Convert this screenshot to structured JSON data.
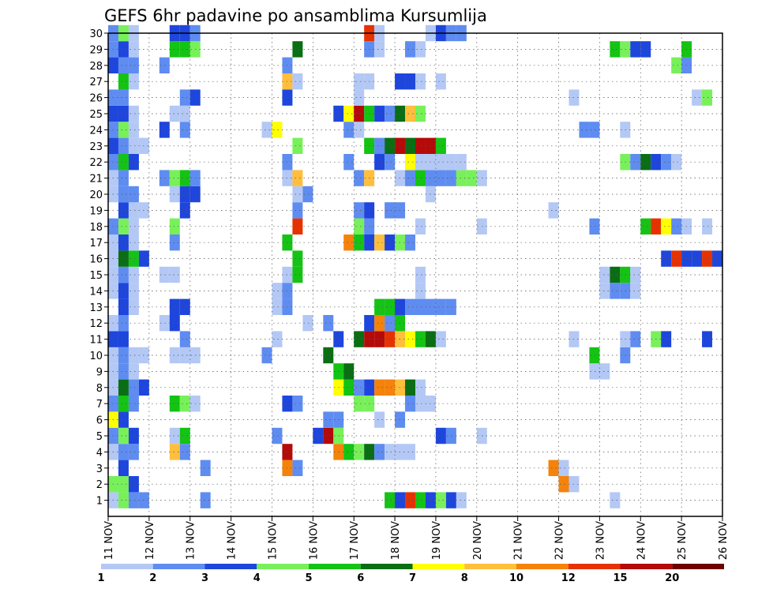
{
  "chart_data": {
    "type": "heatmap",
    "title": "GEFS 6hr padavine po ansamblima Kursumlija",
    "xlabel": "",
    "ylabel": "",
    "x_ticks": [
      "11 NOV",
      "12 NOV",
      "13 NOV",
      "14 NOV",
      "15 NOV",
      "16 NOV",
      "17 NOV",
      "18 NOV",
      "19 NOV",
      "20 NOV",
      "21 NOV",
      "22 NOV",
      "23 NOV",
      "24 NOV",
      "25 NOV",
      "26 NOV"
    ],
    "y_ticks": [
      "1",
      "2",
      "3",
      "4",
      "5",
      "6",
      "7",
      "8",
      "9",
      "10",
      "11",
      "12",
      "13",
      "14",
      "15",
      "16",
      "17",
      "18",
      "19",
      "20",
      "21",
      "22",
      "23",
      "24",
      "25",
      "26",
      "27",
      "28",
      "29",
      "30"
    ],
    "xlim": [
      "11 NOV",
      "26 NOV"
    ],
    "ylim": [
      0,
      30
    ],
    "x_step_hours": 6,
    "grid": true,
    "colorbar": {
      "labels": [
        "1",
        "2",
        "3",
        "4",
        "5",
        "6",
        "7",
        "8",
        "10",
        "12",
        "15",
        "20"
      ],
      "colors": [
        "#b4c8f5",
        "#5f8cf0",
        "#1e46dc",
        "#78f05a",
        "#14c314",
        "#0a6e14",
        "#ffff00",
        "#ffbe3c",
        "#f5820a",
        "#e63200",
        "#b40a0a",
        "#6e0000"
      ]
    },
    "legend_values": [
      1,
      2,
      3,
      4,
      5,
      6,
      7,
      8,
      10,
      12,
      15,
      20
    ],
    "value_colors": {
      "1": "#b4c8f5",
      "2": "#5f8cf0",
      "3": "#1e46dc",
      "4": "#78f05a",
      "5": "#14c314",
      "6": "#0a6e14",
      "7": "#ffff00",
      "8": "#ffbe3c",
      "10": "#f5820a",
      "12": "#e63200",
      "15": "#b40a0a",
      "20": "#6e0000"
    },
    "cells_by_member": {
      "1": [
        [
          0,
          1
        ],
        [
          1,
          4
        ],
        [
          2,
          2
        ],
        [
          3,
          2
        ],
        [
          9,
          2
        ],
        [
          27,
          5
        ],
        [
          28,
          3
        ],
        [
          29,
          12
        ],
        [
          30,
          5
        ],
        [
          31,
          3
        ],
        [
          32,
          4
        ],
        [
          33,
          3
        ],
        [
          34,
          1
        ],
        [
          49,
          1
        ]
      ],
      "2": [
        [
          0,
          4
        ],
        [
          1,
          4
        ],
        [
          2,
          3
        ],
        [
          44,
          10
        ],
        [
          45,
          1
        ]
      ],
      "3": [
        [
          1,
          3
        ],
        [
          9,
          2
        ],
        [
          17,
          10
        ],
        [
          18,
          2
        ],
        [
          43,
          10
        ],
        [
          44,
          1
        ]
      ],
      "4": [
        [
          0,
          1
        ],
        [
          1,
          2
        ],
        [
          2,
          2
        ],
        [
          6,
          8
        ],
        [
          7,
          2
        ],
        [
          17,
          15
        ],
        [
          22,
          10
        ],
        [
          23,
          5
        ],
        [
          24,
          4
        ],
        [
          25,
          6
        ],
        [
          26,
          2
        ],
        [
          27,
          1
        ],
        [
          28,
          1
        ],
        [
          29,
          1
        ]
      ],
      "5": [
        [
          0,
          2
        ],
        [
          1,
          4
        ],
        [
          2,
          3
        ],
        [
          6,
          1
        ],
        [
          7,
          5
        ],
        [
          16,
          2
        ],
        [
          20,
          3
        ],
        [
          21,
          15
        ],
        [
          22,
          4
        ],
        [
          32,
          3
        ],
        [
          33,
          2
        ],
        [
          36,
          1
        ]
      ],
      "6": [
        [
          0,
          7
        ],
        [
          1,
          3
        ],
        [
          21,
          2
        ],
        [
          22,
          2
        ],
        [
          26,
          1
        ],
        [
          28,
          2
        ]
      ],
      "7": [
        [
          0,
          2
        ],
        [
          1,
          5
        ],
        [
          2,
          2
        ],
        [
          6,
          5
        ],
        [
          7,
          4
        ],
        [
          8,
          1
        ],
        [
          17,
          3
        ],
        [
          18,
          2
        ],
        [
          24,
          4
        ],
        [
          25,
          4
        ],
        [
          29,
          2
        ],
        [
          30,
          1
        ],
        [
          31,
          1
        ]
      ],
      "8": [
        [
          0,
          1
        ],
        [
          1,
          6
        ],
        [
          2,
          2
        ],
        [
          3,
          3
        ],
        [
          22,
          7
        ],
        [
          23,
          5
        ],
        [
          24,
          2
        ],
        [
          25,
          3
        ],
        [
          26,
          10
        ],
        [
          27,
          10
        ],
        [
          28,
          8
        ],
        [
          29,
          6
        ],
        [
          30,
          1
        ]
      ],
      "9": [
        [
          0,
          1
        ],
        [
          1,
          2
        ],
        [
          2,
          1
        ],
        [
          22,
          5
        ],
        [
          23,
          6
        ],
        [
          47,
          1
        ],
        [
          48,
          1
        ]
      ],
      "10": [
        [
          0,
          1
        ],
        [
          1,
          2
        ],
        [
          2,
          1
        ],
        [
          3,
          1
        ],
        [
          6,
          1
        ],
        [
          7,
          1
        ],
        [
          8,
          1
        ],
        [
          15,
          2
        ],
        [
          21,
          6
        ],
        [
          47,
          5
        ],
        [
          50,
          2
        ]
      ],
      "11": [
        [
          0,
          3
        ],
        [
          1,
          3
        ],
        [
          7,
          2
        ],
        [
          16,
          1
        ],
        [
          22,
          3
        ],
        [
          24,
          6
        ],
        [
          25,
          15
        ],
        [
          26,
          15
        ],
        [
          27,
          12
        ],
        [
          28,
          8
        ],
        [
          29,
          7
        ],
        [
          30,
          5
        ],
        [
          31,
          6
        ],
        [
          32,
          1
        ],
        [
          45,
          1
        ],
        [
          50,
          1
        ],
        [
          51,
          2
        ],
        [
          53,
          4
        ],
        [
          54,
          3
        ],
        [
          58,
          3
        ]
      ],
      "12": [
        [
          0,
          1
        ],
        [
          1,
          2
        ],
        [
          5,
          1
        ],
        [
          6,
          3
        ],
        [
          19,
          1
        ],
        [
          21,
          2
        ],
        [
          25,
          3
        ],
        [
          26,
          10
        ],
        [
          27,
          2
        ],
        [
          28,
          5
        ]
      ],
      "13": [
        [
          1,
          3
        ],
        [
          2,
          1
        ],
        [
          6,
          3
        ],
        [
          7,
          3
        ],
        [
          16,
          1
        ],
        [
          17,
          2
        ],
        [
          26,
          5
        ],
        [
          27,
          5
        ],
        [
          28,
          3
        ],
        [
          29,
          2
        ],
        [
          30,
          2
        ],
        [
          31,
          2
        ],
        [
          32,
          2
        ],
        [
          33,
          2
        ]
      ],
      "14": [
        [
          0,
          1
        ],
        [
          1,
          3
        ],
        [
          2,
          1
        ],
        [
          16,
          1
        ],
        [
          17,
          2
        ],
        [
          30,
          1
        ],
        [
          48,
          1
        ],
        [
          49,
          2
        ],
        [
          50,
          2
        ],
        [
          51,
          1
        ]
      ],
      "15": [
        [
          0,
          1
        ],
        [
          1,
          2
        ],
        [
          2,
          1
        ],
        [
          5,
          1
        ],
        [
          6,
          1
        ],
        [
          17,
          1
        ],
        [
          18,
          5
        ],
        [
          30,
          1
        ],
        [
          48,
          1
        ],
        [
          49,
          6
        ],
        [
          50,
          5
        ],
        [
          51,
          1
        ]
      ],
      "16": [
        [
          0,
          1
        ],
        [
          1,
          6
        ],
        [
          2,
          5
        ],
        [
          3,
          3
        ],
        [
          18,
          5
        ],
        [
          54,
          3
        ],
        [
          55,
          12
        ],
        [
          56,
          3
        ],
        [
          57,
          3
        ],
        [
          58,
          12
        ],
        [
          59,
          3
        ]
      ],
      "17": [
        [
          0,
          1
        ],
        [
          1,
          3
        ],
        [
          2,
          1
        ],
        [
          6,
          2
        ],
        [
          17,
          5
        ],
        [
          23,
          10
        ],
        [
          24,
          5
        ],
        [
          25,
          3
        ],
        [
          26,
          8
        ],
        [
          27,
          3
        ],
        [
          28,
          4
        ],
        [
          29,
          2
        ]
      ],
      "18": [
        [
          0,
          2
        ],
        [
          1,
          4
        ],
        [
          2,
          1
        ],
        [
          6,
          4
        ],
        [
          18,
          12
        ],
        [
          24,
          4
        ],
        [
          25,
          2
        ],
        [
          30,
          1
        ],
        [
          36,
          1
        ],
        [
          47,
          2
        ],
        [
          52,
          5
        ],
        [
          53,
          12
        ],
        [
          54,
          7
        ],
        [
          55,
          2
        ],
        [
          56,
          1
        ],
        [
          58,
          1
        ]
      ],
      "19": [
        [
          1,
          3
        ],
        [
          2,
          1
        ],
        [
          3,
          1
        ],
        [
          7,
          3
        ],
        [
          18,
          2
        ],
        [
          24,
          2
        ],
        [
          25,
          3
        ],
        [
          27,
          2
        ],
        [
          28,
          2
        ],
        [
          43,
          1
        ]
      ],
      "20": [
        [
          0,
          1
        ],
        [
          1,
          2
        ],
        [
          2,
          2
        ],
        [
          6,
          1
        ],
        [
          7,
          3
        ],
        [
          8,
          3
        ],
        [
          18,
          1
        ],
        [
          19,
          2
        ],
        [
          31,
          1
        ]
      ],
      "21": [
        [
          0,
          1
        ],
        [
          1,
          2
        ],
        [
          5,
          2
        ],
        [
          6,
          4
        ],
        [
          7,
          5
        ],
        [
          8,
          2
        ],
        [
          17,
          1
        ],
        [
          18,
          8
        ],
        [
          24,
          2
        ],
        [
          25,
          8
        ],
        [
          28,
          1
        ],
        [
          29,
          2
        ],
        [
          30,
          5
        ],
        [
          31,
          2
        ],
        [
          32,
          2
        ],
        [
          33,
          2
        ],
        [
          34,
          4
        ],
        [
          35,
          4
        ],
        [
          36,
          1
        ]
      ],
      "22": [
        [
          0,
          2
        ],
        [
          1,
          5
        ],
        [
          2,
          3
        ],
        [
          17,
          2
        ],
        [
          23,
          2
        ],
        [
          26,
          3
        ],
        [
          27,
          2
        ],
        [
          29,
          7
        ],
        [
          30,
          1
        ],
        [
          31,
          1
        ],
        [
          32,
          1
        ],
        [
          33,
          1
        ],
        [
          34,
          1
        ],
        [
          50,
          4
        ],
        [
          51,
          2
        ],
        [
          52,
          6
        ],
        [
          53,
          3
        ],
        [
          54,
          2
        ],
        [
          55,
          1
        ]
      ],
      "23": [
        [
          0,
          3
        ],
        [
          1,
          2
        ],
        [
          2,
          1
        ],
        [
          3,
          1
        ],
        [
          18,
          4
        ],
        [
          25,
          5
        ],
        [
          26,
          2
        ],
        [
          27,
          6
        ],
        [
          28,
          15
        ],
        [
          29,
          6
        ],
        [
          30,
          15
        ],
        [
          31,
          15
        ],
        [
          32,
          5
        ]
      ],
      "24": [
        [
          0,
          2
        ],
        [
          1,
          4
        ],
        [
          2,
          1
        ],
        [
          5,
          3
        ],
        [
          7,
          2
        ],
        [
          15,
          1
        ],
        [
          16,
          7
        ],
        [
          23,
          2
        ],
        [
          24,
          1
        ],
        [
          46,
          2
        ],
        [
          47,
          2
        ],
        [
          50,
          1
        ]
      ],
      "25": [
        [
          0,
          3
        ],
        [
          1,
          3
        ],
        [
          2,
          1
        ],
        [
          6,
          1
        ],
        [
          7,
          1
        ],
        [
          22,
          3
        ],
        [
          23,
          7
        ],
        [
          24,
          15
        ],
        [
          25,
          5
        ],
        [
          26,
          3
        ],
        [
          27,
          2
        ],
        [
          28,
          6
        ],
        [
          29,
          8
        ],
        [
          30,
          4
        ]
      ],
      "26": [
        [
          0,
          2
        ],
        [
          1,
          2
        ],
        [
          7,
          2
        ],
        [
          8,
          3
        ],
        [
          17,
          3
        ],
        [
          24,
          1
        ],
        [
          45,
          1
        ],
        [
          57,
          1
        ],
        [
          58,
          4
        ]
      ],
      "27": [
        [
          1,
          5
        ],
        [
          2,
          1
        ],
        [
          17,
          8
        ],
        [
          18,
          1
        ],
        [
          24,
          1
        ],
        [
          25,
          1
        ],
        [
          28,
          3
        ],
        [
          29,
          3
        ],
        [
          30,
          1
        ],
        [
          32,
          1
        ]
      ],
      "28": [
        [
          0,
          3
        ],
        [
          1,
          2
        ],
        [
          2,
          2
        ],
        [
          5,
          2
        ],
        [
          17,
          2
        ],
        [
          55,
          4
        ],
        [
          56,
          2
        ]
      ],
      "29": [
        [
          0,
          2
        ],
        [
          1,
          3
        ],
        [
          2,
          1
        ],
        [
          6,
          5
        ],
        [
          7,
          5
        ],
        [
          8,
          4
        ],
        [
          18,
          6
        ],
        [
          25,
          2
        ],
        [
          26,
          1
        ],
        [
          29,
          2
        ],
        [
          30,
          1
        ],
        [
          49,
          5
        ],
        [
          50,
          4
        ],
        [
          51,
          3
        ],
        [
          52,
          3
        ],
        [
          56,
          5
        ]
      ],
      "30": [
        [
          0,
          2
        ],
        [
          1,
          4
        ],
        [
          2,
          1
        ],
        [
          6,
          3
        ],
        [
          7,
          3
        ],
        [
          8,
          2
        ],
        [
          25,
          12
        ],
        [
          26,
          1
        ],
        [
          31,
          1
        ],
        [
          32,
          3
        ],
        [
          33,
          2
        ],
        [
          34,
          2
        ]
      ]
    }
  }
}
